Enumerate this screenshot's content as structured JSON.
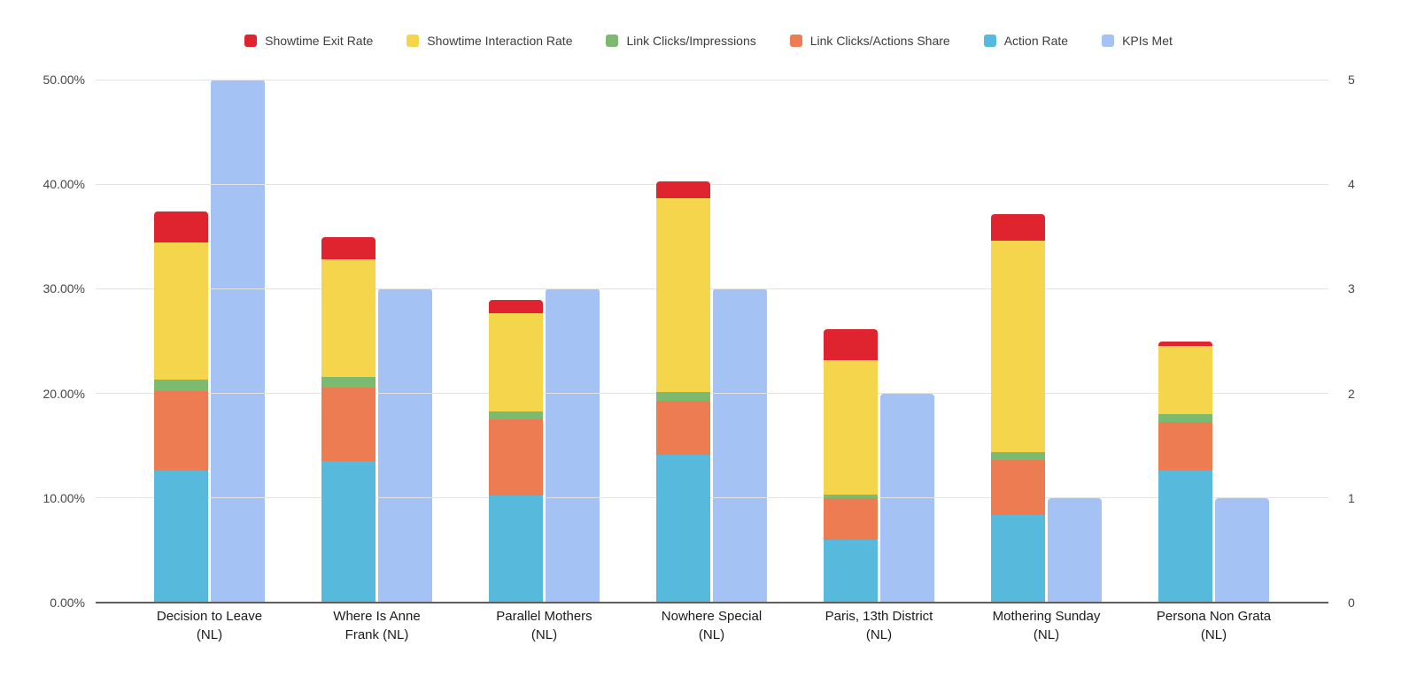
{
  "chart_data": {
    "type": "bar",
    "subtype": "stacked-column-dual-axis",
    "title": "",
    "legend_position": "top",
    "grid": true,
    "categories": [
      "Decision to Leave (NL)",
      "Where Is Anne Frank (NL)",
      "Parallel Mothers (NL)",
      "Nowhere Special (NL)",
      "Paris, 13th District (NL)",
      "Mothering Sunday (NL)",
      "Persona Non Grata (NL)"
    ],
    "category_label_lines": [
      [
        "Decision to Leave",
        "(NL)"
      ],
      [
        "Where Is Anne",
        "Frank (NL)"
      ],
      [
        "Parallel Mothers",
        "(NL)"
      ],
      [
        "Nowhere Special",
        "(NL)"
      ],
      [
        "Paris, 13th District",
        "(NL)"
      ],
      [
        "Mothering Sunday",
        "(NL)"
      ],
      [
        "Persona Non Grata",
        "(NL)"
      ]
    ],
    "left_axis": {
      "min": 0,
      "max": 50,
      "unit": "%",
      "ticks": [
        "0.00%",
        "10.00%",
        "20.00%",
        "30.00%",
        "40.00%",
        "50.00%"
      ],
      "tick_values": [
        0,
        10,
        20,
        30,
        40,
        50
      ]
    },
    "right_axis": {
      "min": 0,
      "max": 5,
      "ticks": [
        "0",
        "1",
        "2",
        "3",
        "4",
        "5"
      ],
      "tick_values": [
        0,
        1,
        2,
        3,
        4,
        5
      ]
    },
    "stack_order_bottom_to_top": [
      "Action Rate",
      "Link Clicks/Actions Share",
      "Link Clicks/Impressions",
      "Showtime Interaction Rate",
      "Showtime Exit Rate"
    ],
    "series": [
      {
        "name": "Showtime Exit Rate",
        "color": "#e0242f",
        "axis": "left",
        "values": [
          3.0,
          2.1,
          1.2,
          1.6,
          2.9,
          2.5,
          0.5
        ]
      },
      {
        "name": "Showtime Interaction Rate",
        "color": "#f5d54c",
        "axis": "left",
        "values": [
          13.1,
          11.2,
          9.4,
          18.6,
          12.9,
          20.2,
          6.5
        ]
      },
      {
        "name": "Link Clicks/Impressions",
        "color": "#7cba70",
        "axis": "left",
        "values": [
          1.1,
          1.0,
          0.8,
          0.8,
          0.3,
          0.8,
          0.7
        ]
      },
      {
        "name": "Link Clicks/Actions Share",
        "color": "#ee7c52",
        "axis": "left",
        "values": [
          7.6,
          7.1,
          7.3,
          5.2,
          4.0,
          5.2,
          4.7
        ]
      },
      {
        "name": "Action Rate",
        "color": "#57badd",
        "axis": "left",
        "values": [
          12.6,
          13.5,
          10.2,
          14.1,
          6.0,
          8.4,
          12.6
        ]
      },
      {
        "name": "KPIs Met",
        "color": "#a4c2f4",
        "axis": "right",
        "values": [
          5,
          3,
          3,
          3,
          2,
          1,
          1
        ]
      }
    ],
    "stack_totals_pct": [
      37.4,
      34.9,
      28.9,
      40.3,
      26.1,
      37.1,
      25.0
    ]
  },
  "style_colors": {
    "gridline": "#e3e3e3",
    "axis_line": "#5f5f5f",
    "tick_text": "#464646",
    "category_text": "#1b1b1b",
    "legend_text": "#3c3c3c",
    "background": "#ffffff"
  }
}
